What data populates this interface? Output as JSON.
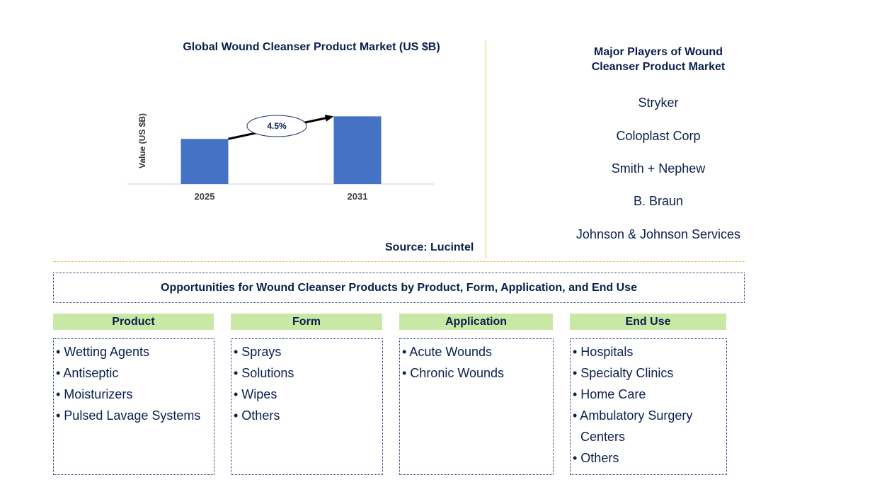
{
  "chart_data": {
    "type": "bar",
    "title": "Global Wound Cleanser Product Market (US $B)",
    "ylabel": "Value (US $B)",
    "categories": [
      "2025",
      "2031"
    ],
    "values": [
      1.0,
      1.5
    ],
    "ylim": [
      0,
      1.6
    ],
    "bar_color": "#4472c4",
    "annotation": "4.5%",
    "grid": false
  },
  "source": "Source: Lucintel",
  "players": {
    "title_line1": "Major Players of Wound",
    "title_line2": "Cleanser Product Market",
    "items": [
      "Stryker",
      "Coloplast Corp",
      "Smith + Nephew",
      "B. Braun",
      "Johnson & Johnson Services"
    ]
  },
  "opportunities": {
    "title": "Opportunities for Wound Cleanser Products by Product, Form, Application, and End Use",
    "columns": [
      {
        "header": "Product",
        "items": [
          "• Wetting Agents",
          "• Antiseptic",
          "• Moisturizers",
          "• Pulsed Lavage Systems"
        ]
      },
      {
        "header": "Form",
        "items": [
          "• Sprays",
          "• Solutions",
          "• Wipes",
          "• Others"
        ]
      },
      {
        "header": "Application",
        "items": [
          "• Acute Wounds",
          "• Chronic Wounds"
        ]
      },
      {
        "header": "End Use",
        "items": [
          "• Hospitals",
          "• Specialty Clinics",
          "• Home Care",
          "• Ambulatory Surgery",
          "Centers",
          "• Others"
        ]
      }
    ]
  },
  "colors": {
    "header_fill": "#c9e8a5",
    "text": "#0b1f4d",
    "divider": "#f0c040"
  }
}
